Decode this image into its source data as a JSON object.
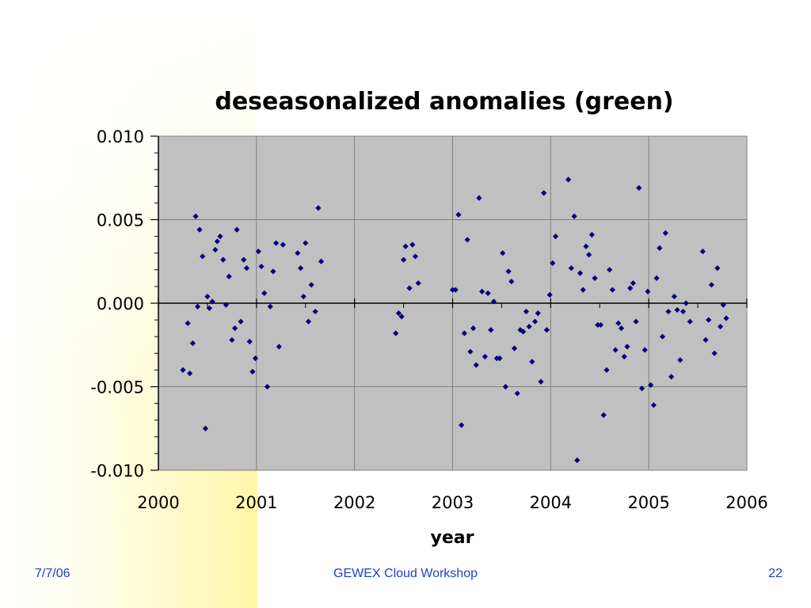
{
  "footer": {
    "date": "7/7/06",
    "title": "GEWEX Cloud Workshop",
    "page": "22"
  },
  "colors": {
    "plot_area": "#c0c0c0",
    "marker": "#00007f",
    "footer_text": "#1a3fcc",
    "background_accent": "#fff6a8"
  },
  "chart_data": {
    "type": "scatter",
    "title": "deseasonalized anomalies (green)",
    "xlabel": "year",
    "ylabel": "",
    "xlim": [
      2000,
      2006
    ],
    "ylim": [
      -0.01,
      0.01
    ],
    "x_ticks": [
      "2000",
      "2001",
      "2002",
      "2003",
      "2004",
      "2005",
      "2006"
    ],
    "y_ticks": [
      "0.010",
      "0.005",
      "0.000",
      "-0.005",
      "-0.010"
    ],
    "grid": true,
    "legend": "none",
    "marker": "diamond",
    "points": [
      [
        2000.25,
        -0.004
      ],
      [
        2000.3,
        -0.0012
      ],
      [
        2000.32,
        -0.0042
      ],
      [
        2000.35,
        -0.0024
      ],
      [
        2000.38,
        0.0052
      ],
      [
        2000.4,
        -0.0002
      ],
      [
        2000.42,
        0.0044
      ],
      [
        2000.45,
        0.0028
      ],
      [
        2000.48,
        -0.0075
      ],
      [
        2000.5,
        0.0004
      ],
      [
        2000.52,
        -0.0003
      ],
      [
        2000.55,
        0.0001
      ],
      [
        2000.58,
        0.0032
      ],
      [
        2000.6,
        0.0037
      ],
      [
        2000.63,
        0.004
      ],
      [
        2000.66,
        0.0026
      ],
      [
        2000.69,
        -0.0001
      ],
      [
        2000.72,
        0.0016
      ],
      [
        2000.75,
        -0.0022
      ],
      [
        2000.78,
        -0.0015
      ],
      [
        2000.8,
        0.0044
      ],
      [
        2000.84,
        -0.0011
      ],
      [
        2000.87,
        0.0026
      ],
      [
        2000.9,
        0.0021
      ],
      [
        2000.93,
        -0.0023
      ],
      [
        2000.96,
        -0.0041
      ],
      [
        2000.99,
        -0.0033
      ],
      [
        2001.02,
        0.0031
      ],
      [
        2001.05,
        0.0022
      ],
      [
        2001.08,
        0.0006
      ],
      [
        2001.11,
        -0.005
      ],
      [
        2001.14,
        -0.0002
      ],
      [
        2001.17,
        0.0019
      ],
      [
        2001.2,
        0.0036
      ],
      [
        2001.23,
        -0.0026
      ],
      [
        2001.27,
        0.0035
      ],
      [
        2001.42,
        0.003
      ],
      [
        2001.45,
        0.0021
      ],
      [
        2001.48,
        0.0004
      ],
      [
        2001.5,
        0.0036
      ],
      [
        2001.53,
        -0.0011
      ],
      [
        2001.56,
        0.0011
      ],
      [
        2001.6,
        -0.0005
      ],
      [
        2001.63,
        0.0057
      ],
      [
        2001.66,
        0.0025
      ],
      [
        2002.42,
        -0.0018
      ],
      [
        2002.45,
        -0.0006
      ],
      [
        2002.48,
        -0.0008
      ],
      [
        2002.5,
        0.0026
      ],
      [
        2002.52,
        0.0034
      ],
      [
        2002.56,
        0.0009
      ],
      [
        2002.59,
        0.0035
      ],
      [
        2002.62,
        0.0028
      ],
      [
        2002.65,
        0.0012
      ],
      [
        2003.0,
        0.0008
      ],
      [
        2003.03,
        0.0008
      ],
      [
        2003.06,
        0.0053
      ],
      [
        2003.09,
        -0.0073
      ],
      [
        2003.12,
        -0.0018
      ],
      [
        2003.15,
        0.0038
      ],
      [
        2003.18,
        -0.0029
      ],
      [
        2003.21,
        -0.0015
      ],
      [
        2003.24,
        -0.0037
      ],
      [
        2003.27,
        0.0063
      ],
      [
        2003.3,
        0.0007
      ],
      [
        2003.33,
        -0.0032
      ],
      [
        2003.36,
        0.0006
      ],
      [
        2003.39,
        -0.0016
      ],
      [
        2003.42,
        0.0001
      ],
      [
        2003.45,
        -0.0033
      ],
      [
        2003.48,
        -0.0033
      ],
      [
        2003.51,
        0.003
      ],
      [
        2003.54,
        -0.005
      ],
      [
        2003.57,
        0.0019
      ],
      [
        2003.6,
        0.0013
      ],
      [
        2003.63,
        -0.0027
      ],
      [
        2003.66,
        -0.0054
      ],
      [
        2003.69,
        -0.0016
      ],
      [
        2003.72,
        -0.0017
      ],
      [
        2003.75,
        -0.0005
      ],
      [
        2003.78,
        -0.0014
      ],
      [
        2003.81,
        -0.0035
      ],
      [
        2003.84,
        -0.0011
      ],
      [
        2003.87,
        -0.0006
      ],
      [
        2003.9,
        -0.0047
      ],
      [
        2003.93,
        0.0066
      ],
      [
        2003.96,
        -0.0016
      ],
      [
        2003.99,
        0.0005
      ],
      [
        2004.02,
        0.0024
      ],
      [
        2004.05,
        0.004
      ],
      [
        2004.18,
        0.0074
      ],
      [
        2004.21,
        0.0021
      ],
      [
        2004.24,
        0.0052
      ],
      [
        2004.27,
        -0.0094
      ],
      [
        2004.3,
        0.0018
      ],
      [
        2004.33,
        0.0008
      ],
      [
        2004.36,
        0.0034
      ],
      [
        2004.39,
        0.0029
      ],
      [
        2004.42,
        0.0041
      ],
      [
        2004.45,
        0.0015
      ],
      [
        2004.48,
        -0.0013
      ],
      [
        2004.51,
        -0.0013
      ],
      [
        2004.54,
        -0.0067
      ],
      [
        2004.57,
        -0.004
      ],
      [
        2004.6,
        0.002
      ],
      [
        2004.63,
        0.0008
      ],
      [
        2004.66,
        -0.0028
      ],
      [
        2004.69,
        -0.0012
      ],
      [
        2004.72,
        -0.0015
      ],
      [
        2004.75,
        -0.0032
      ],
      [
        2004.78,
        -0.0026
      ],
      [
        2004.81,
        0.0009
      ],
      [
        2004.84,
        0.0012
      ],
      [
        2004.87,
        -0.0011
      ],
      [
        2004.9,
        0.0069
      ],
      [
        2004.93,
        -0.0051
      ],
      [
        2004.96,
        -0.0028
      ],
      [
        2004.99,
        0.0007
      ],
      [
        2005.02,
        -0.0049
      ],
      [
        2005.05,
        -0.0061
      ],
      [
        2005.08,
        0.0015
      ],
      [
        2005.11,
        0.0033
      ],
      [
        2005.14,
        -0.002
      ],
      [
        2005.17,
        0.0042
      ],
      [
        2005.2,
        -0.0005
      ],
      [
        2005.23,
        -0.0044
      ],
      [
        2005.26,
        0.0004
      ],
      [
        2005.29,
        -0.0004
      ],
      [
        2005.32,
        -0.0034
      ],
      [
        2005.35,
        -0.0005
      ],
      [
        2005.38,
        0.0
      ],
      [
        2005.42,
        -0.0011
      ],
      [
        2005.55,
        0.0031
      ],
      [
        2005.58,
        -0.0022
      ],
      [
        2005.61,
        -0.001
      ],
      [
        2005.64,
        0.0011
      ],
      [
        2005.67,
        -0.003
      ],
      [
        2005.7,
        0.0021
      ],
      [
        2005.73,
        -0.0014
      ],
      [
        2005.76,
        -0.0001
      ],
      [
        2005.79,
        -0.0009
      ]
    ]
  }
}
